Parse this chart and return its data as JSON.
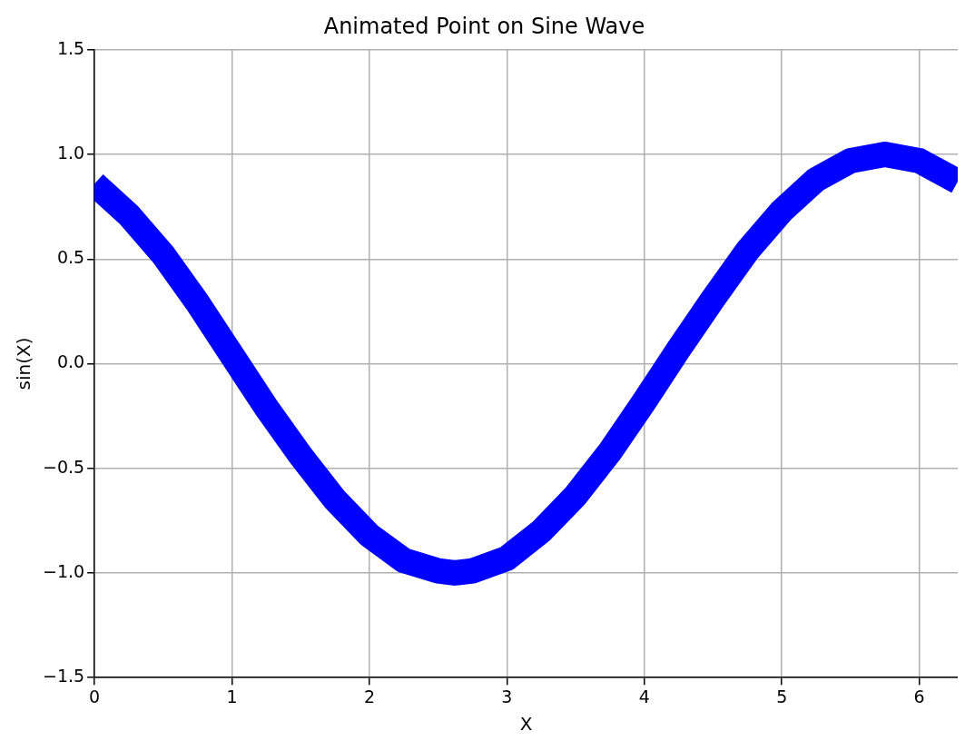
{
  "chart_data": {
    "type": "line",
    "title": "Animated Point on Sine Wave",
    "xlabel": "X",
    "ylabel": "sin(X)",
    "series": [
      {
        "color": "#0000ff",
        "x": [
          0,
          0.25,
          0.5,
          0.75,
          1,
          1.25,
          1.5,
          1.75,
          2,
          2.25,
          2.5,
          2.62,
          2.75,
          3,
          3.25,
          3.5,
          3.75,
          4,
          4.25,
          4.5,
          4.75,
          5,
          5.25,
          5.5,
          5.75,
          6,
          6.28
        ],
        "values": [
          0.86,
          0.71,
          0.52,
          0.29,
          0.04,
          -0.21,
          -0.44,
          -0.65,
          -0.82,
          -0.94,
          -0.99,
          -1.0,
          -0.99,
          -0.93,
          -0.8,
          -0.63,
          -0.42,
          -0.18,
          0.07,
          0.31,
          0.54,
          0.73,
          0.88,
          0.97,
          1.0,
          0.97,
          0.87
        ]
      }
    ],
    "xlim": [
      0,
      6.28
    ],
    "xticks": [
      0,
      1,
      2,
      3,
      4,
      5,
      6
    ],
    "ylim": [
      -1.5,
      1.5
    ],
    "yticks": [
      {
        "value": -1.5,
        "label": "−1.5"
      },
      {
        "value": -1,
        "label": "−1.0"
      },
      {
        "value": -0.5,
        "label": "−0.5"
      },
      {
        "value": 0,
        "label": "0.0"
      },
      {
        "value": 0.5,
        "label": "0.5"
      },
      {
        "value": 1,
        "label": "1.0"
      },
      {
        "value": 1.5,
        "label": "1.5"
      }
    ],
    "grid": true,
    "marker": "none",
    "line_style": "solid",
    "legend": false
  }
}
